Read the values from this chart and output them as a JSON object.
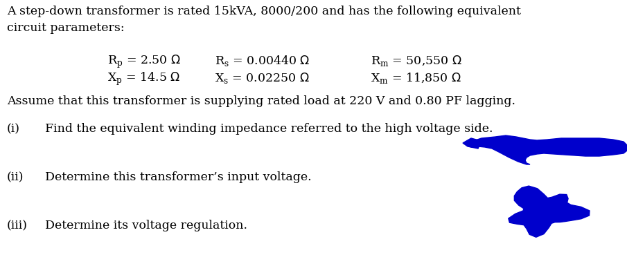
{
  "title_line1": "A step-down transformer is rated 15kVA, 8000/200 and has the following equivalent",
  "title_line2": "circuit parameters:",
  "assume_text": "Assume that this transformer is supplying rated load at 220 V and 0.80 PF lagging.",
  "items": [
    {
      "label": "(i)",
      "text": "Find the equivalent winding impedance referred to the high voltage side."
    },
    {
      "label": "(ii)",
      "text": "Determine this transformer’s input voltage."
    },
    {
      "label": "(iii)",
      "text": "Determine its voltage regulation."
    }
  ],
  "font_size_main": 12.5,
  "font_size_params": 12.5,
  "text_color": "#000000",
  "bg_color": "#ffffff",
  "blob_color": "#0000cc"
}
